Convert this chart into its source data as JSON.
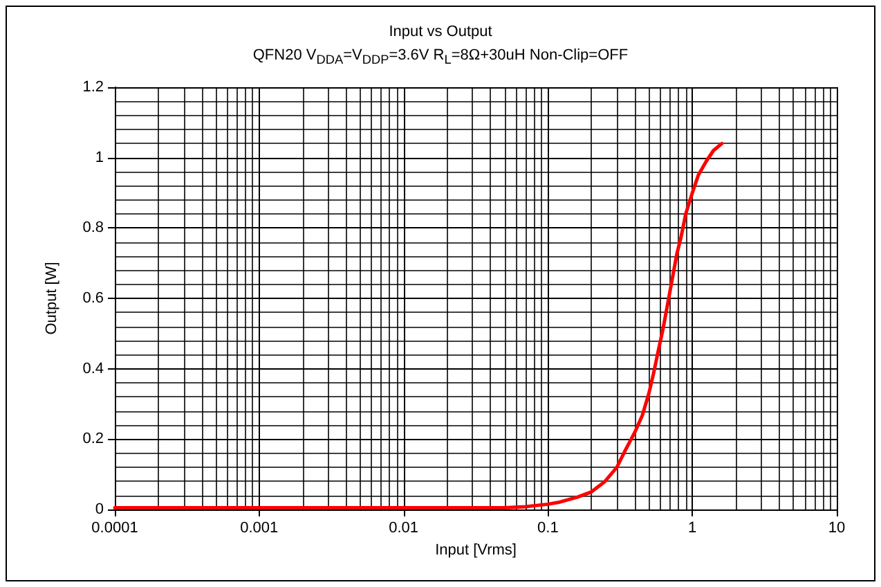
{
  "chart_data": {
    "type": "line",
    "title": "Input vs Output",
    "subtitle": "QFN20 V$_{DDA}$=V$_{DDP}$=3.6V R$_{L}$=8Ω+30uH Non-Clip=OFF",
    "xlabel": "Input [Vrms]",
    "ylabel": "Output [W]",
    "log": "x",
    "xlim": [
      0.0001,
      10
    ],
    "xticks": [
      0.0001,
      0.001,
      0.01,
      0.1,
      1,
      10
    ],
    "ylim": [
      0,
      1.2
    ],
    "yticks": [
      0,
      0.2,
      0.4,
      0.6,
      0.8,
      1,
      1.2
    ],
    "grid": true,
    "marker": "none",
    "line_style": "solid",
    "series": [
      {
        "color": "#ff0000",
        "x": [
          0.0001,
          0.001,
          0.01,
          0.05,
          0.07,
          0.1,
          0.118,
          0.16,
          0.2,
          0.246,
          0.3,
          0.344,
          0.4,
          0.45,
          0.5,
          0.537,
          0.58,
          0.627,
          0.7,
          0.78,
          0.837,
          0.9,
          1,
          1.1,
          1.25,
          1.4,
          1.6
        ],
        "values": [
          0.005,
          0.005,
          0.005,
          0.005,
          0.008,
          0.015,
          0.02,
          0.035,
          0.05,
          0.078,
          0.12,
          0.169,
          0.22,
          0.267,
          0.33,
          0.384,
          0.45,
          0.514,
          0.62,
          0.725,
          0.776,
          0.84,
          0.9,
          0.95,
          0.99,
          1.02,
          1.04
        ]
      }
    ]
  }
}
